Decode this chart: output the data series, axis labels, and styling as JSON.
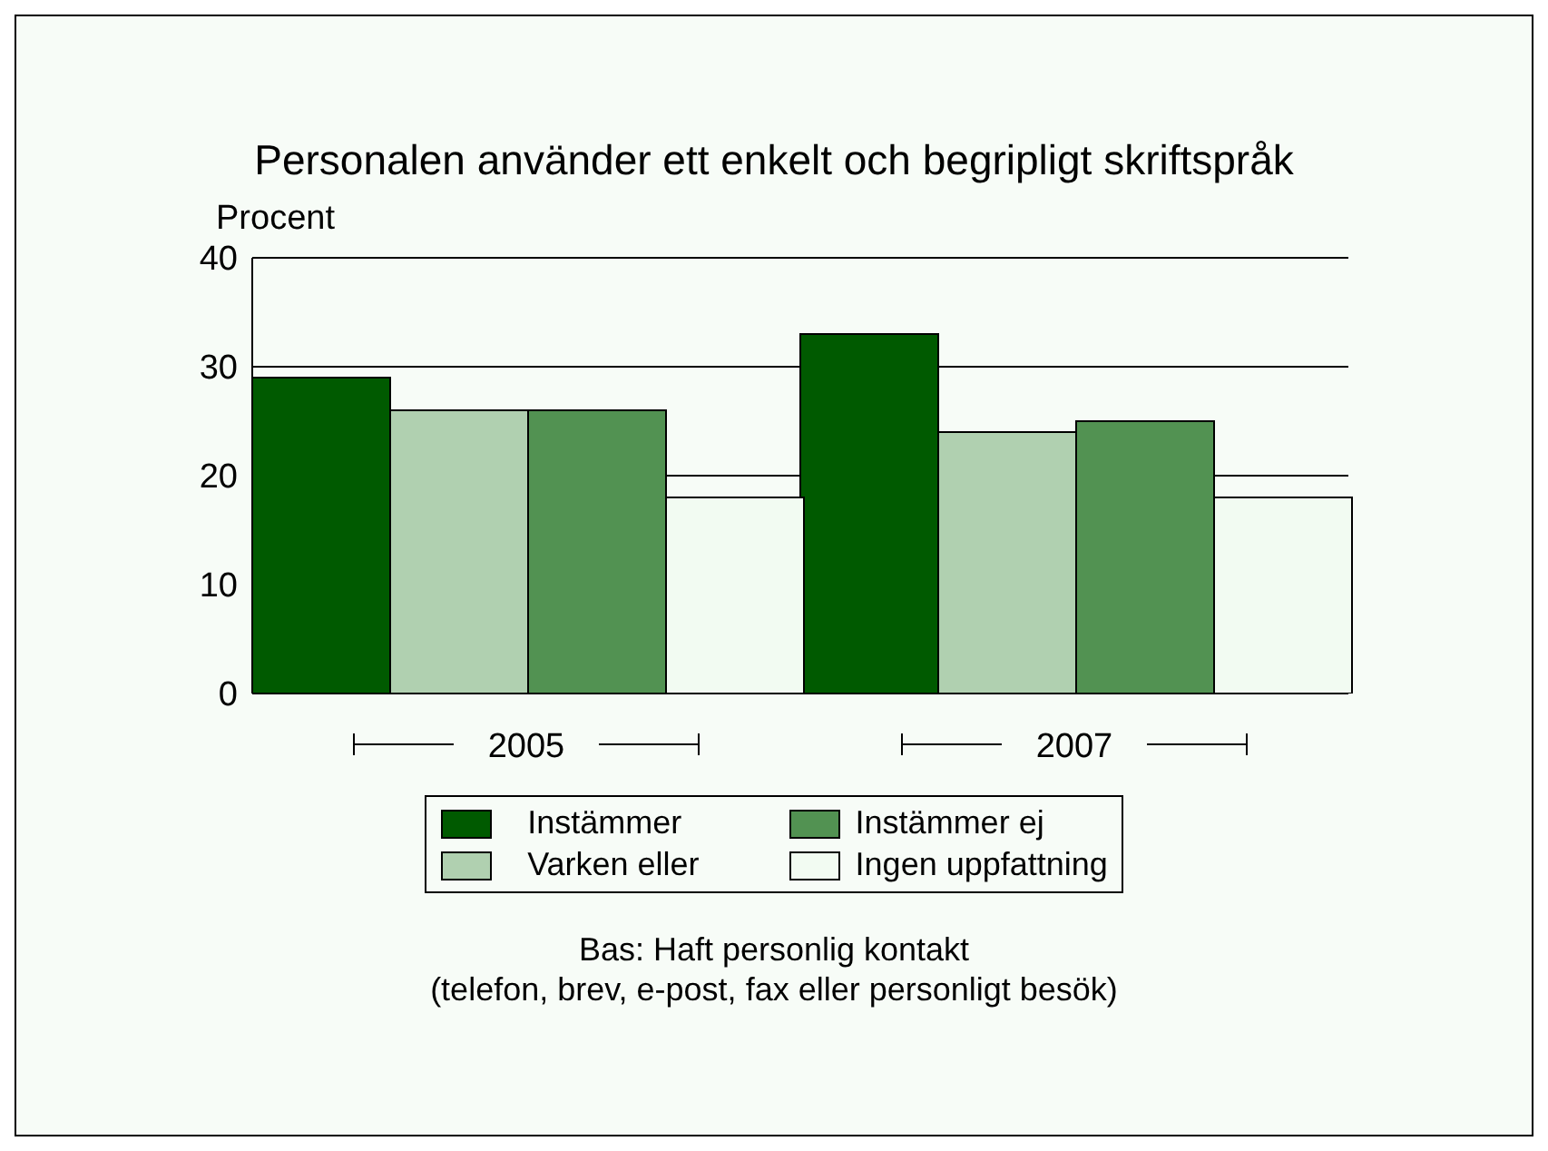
{
  "chart_data": {
    "type": "bar",
    "title": "Personalen använder ett enkelt och begripligt skriftspråk",
    "ylabel": "Procent",
    "categories": [
      "2005",
      "2007"
    ],
    "series": [
      {
        "name": "Instämmer",
        "color": "#005a00",
        "values": [
          29,
          33
        ]
      },
      {
        "name": "Varken eller",
        "color": "#b0d0b0",
        "values": [
          26,
          24
        ]
      },
      {
        "name": "Instämmer ej",
        "color": "#529252",
        "values": [
          26,
          25
        ]
      },
      {
        "name": "Ingen uppfattning",
        "color": "#f2fbf2",
        "values": [
          18,
          18
        ]
      }
    ],
    "ylim": [
      0,
      40
    ],
    "yticks": [
      0,
      10,
      20,
      30,
      40
    ],
    "grid": "y",
    "legend": "bottom",
    "annotations": [
      "Bas: Haft personlig kontakt",
      "(telefon, brev, e-post, fax eller personligt besök)"
    ]
  }
}
